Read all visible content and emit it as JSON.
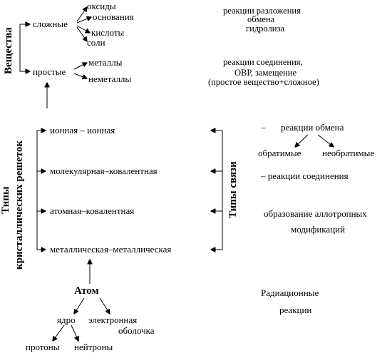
{
  "substances": {
    "heading": "Вещества",
    "complex": "сложные",
    "complex_items": [
      "оксиды",
      "основания",
      "кислоты",
      "соли"
    ],
    "simple": "простые",
    "simple_items": [
      "металлы",
      "неметаллы"
    ]
  },
  "reactions_top": {
    "group1": [
      "реакции разложения",
      "обмена",
      "гидролиза"
    ],
    "group2": [
      "реакции соединения,",
      "ОВР, замещение",
      "(простое вещество+сложное)"
    ]
  },
  "lattice": {
    "heading_line1": "Типы",
    "heading_line2": "кристаллических решеток",
    "rows": [
      "ионная – ионная",
      "молекулярная–ковалентная",
      "атомная–ковалентная",
      "металлическая–металлическая"
    ]
  },
  "bond_types": {
    "heading": "Типы связи"
  },
  "reactions_right": {
    "exchange_dash": "–",
    "exchange": "реакции обмена",
    "reversible": "обратимые",
    "irreversible": "необратимые",
    "combination": "– реакции соединения",
    "allotropic_line1": "образование аллотропных",
    "allotropic_line2": "модификаций",
    "radiation_line1": "Радиационные",
    "radiation_line2": "реакции"
  },
  "atom": {
    "title": "Атом",
    "nucleus": "ядро",
    "shell_line1": "электронная",
    "shell_line2": "оболочка",
    "protons": "протоны",
    "neutrons": "нейтроны"
  }
}
